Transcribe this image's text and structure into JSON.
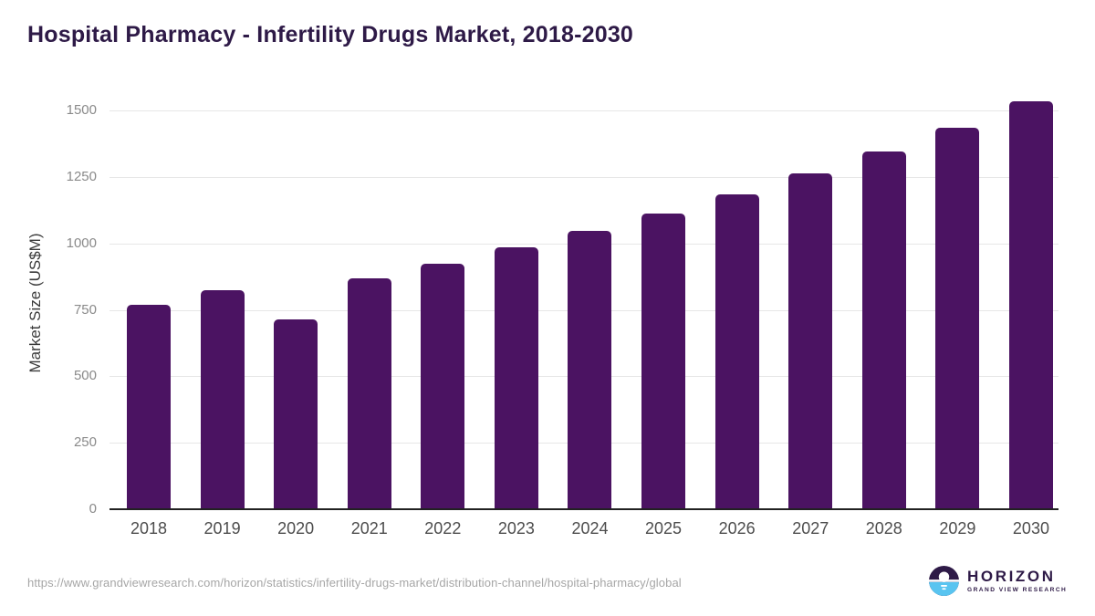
{
  "page": {
    "title": "Hospital Pharmacy - Infertility Drugs Market, 2018-2030"
  },
  "chart_data": {
    "type": "bar",
    "title": "Hospital Pharmacy - Infertility Drugs Market, 2018-2030",
    "categories": [
      "2018",
      "2019",
      "2020",
      "2021",
      "2022",
      "2023",
      "2024",
      "2025",
      "2026",
      "2027",
      "2028",
      "2029",
      "2030"
    ],
    "values": [
      768,
      823,
      715,
      870,
      925,
      985,
      1047,
      1114,
      1185,
      1264,
      1344,
      1434,
      1534
    ],
    "xlabel": "",
    "ylabel": "Market Size (US$M)",
    "yticks": [
      0,
      250,
      500,
      750,
      1000,
      1250,
      1500
    ],
    "ylim": [
      0,
      1500
    ],
    "grid": true,
    "legend": false,
    "bar_color": "#4b1362"
  },
  "footer": {
    "source_url": "https://www.grandviewresearch.com/horizon/statistics/infertility-drugs-market/distribution-channel/hospital-pharmacy/global",
    "logo": {
      "name": "HORIZON",
      "tagline": "GRAND VIEW RESEARCH"
    }
  },
  "colors": {
    "title": "#2e1a47",
    "bar": "#4b1362",
    "gridline": "#e7e7e7",
    "axis_line": "#212121",
    "ytick_text": "#8a8a8a",
    "xtick_text": "#4d4d4d",
    "url_text": "#a6a6a6",
    "logo_purple": "#2e1a47",
    "logo_blue": "#59c4f0"
  }
}
